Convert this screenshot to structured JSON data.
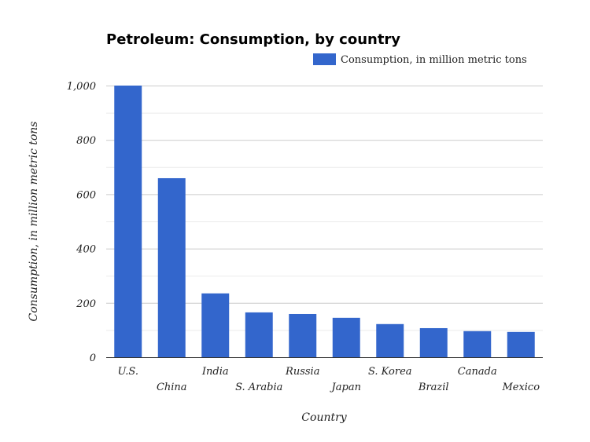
{
  "chart_data": {
    "type": "bar",
    "title": "Petroleum: Consumption, by country",
    "xlabel": "Country",
    "ylabel": "Consumption, in million metric tons",
    "legend": {
      "entries": [
        "Consumption, in million metric tons"
      ],
      "placement": "top-right"
    },
    "categories": [
      "U.S.",
      "China",
      "India",
      "S. Arabia",
      "Russia",
      "Japan",
      "S. Korea",
      "Brazil",
      "Canada",
      "Mexico"
    ],
    "series": [
      {
        "name": "Consumption, in million metric tons",
        "values": [
          1000,
          659,
          235,
          165,
          159,
          145,
          122,
          107,
          96,
          93
        ],
        "color": "#3366cc"
      }
    ],
    "ylim": [
      0,
      1000
    ],
    "yticks": [
      0,
      200,
      400,
      600,
      800,
      1000
    ],
    "ytick_labels": [
      "0",
      "200",
      "400",
      "600",
      "800",
      "1,000"
    ],
    "grid": true
  }
}
